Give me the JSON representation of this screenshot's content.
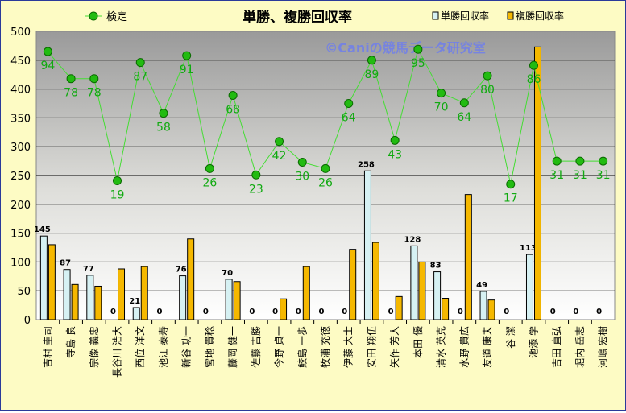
{
  "chart_data": {
    "type": "bar",
    "title": "単勝、複勝回収率",
    "watermark": "©Caniの競馬データ研究室",
    "ylim": [
      0,
      500
    ],
    "yticks": [
      0,
      50,
      100,
      150,
      200,
      250,
      300,
      350,
      400,
      450,
      500
    ],
    "grid": true,
    "legend_placement": "top",
    "categories": [
      "吉村 圭司",
      "寺島 良",
      "宗像 義忠",
      "長谷川 浩大",
      "西位 洋文",
      "池江 泰寿",
      "新谷 功一",
      "宮地 貴稔",
      "藤岡 健一",
      "佐藤 吉勝",
      "今野 貞一",
      "鮫島 一歩",
      "牧浦 充徳",
      "伊藤 大士",
      "安田 翔伍",
      "矢作 芳人",
      "本田 優",
      "清水 英克",
      "水野 貴広",
      "友道 康夫",
      "谷 潔",
      "池添 学",
      "吉田 直弘",
      "堀内 岳志",
      "河嶋 宏樹"
    ],
    "series": [
      {
        "name": "単勝回収率",
        "kind": "bar",
        "color": "#d6f1f3",
        "values": [
          145,
          87,
          77,
          0,
          21,
          0,
          76,
          0,
          70,
          0,
          0,
          0,
          0,
          0,
          258,
          0,
          128,
          83,
          0,
          49,
          0,
          113,
          0,
          0,
          0
        ]
      },
      {
        "name": "複勝回収率",
        "kind": "bar",
        "color": "#f5b800",
        "values": [
          130,
          61,
          58,
          88,
          92,
          0,
          140,
          0,
          66,
          0,
          36,
          92,
          0,
          122,
          134,
          40,
          100,
          37,
          217,
          34,
          0,
          473,
          0,
          0,
          0
        ]
      },
      {
        "name": "検定",
        "kind": "line",
        "color": "#22bb11",
        "values": [
          465,
          418,
          418,
          241,
          446,
          358,
          458,
          262,
          389,
          251,
          309,
          273,
          262,
          375,
          450,
          311,
          469,
          393,
          376,
          423,
          235,
          441,
          275,
          275,
          275
        ],
        "labels": [
          "94",
          "78",
          "78",
          "19",
          "87",
          "58",
          "91",
          "26",
          "68",
          "23",
          "42",
          "30",
          "26",
          "64",
          "89",
          "43",
          "95",
          "70",
          "64",
          "80",
          "17",
          "86",
          "31",
          "31",
          "31"
        ]
      }
    ]
  }
}
